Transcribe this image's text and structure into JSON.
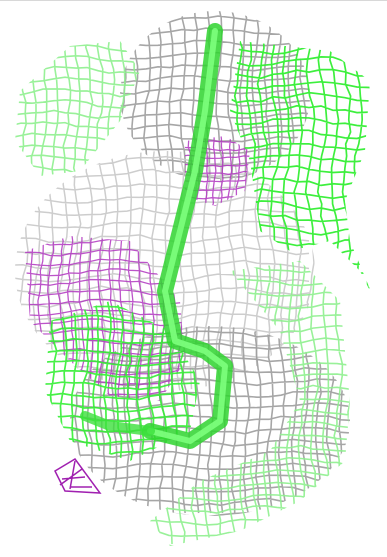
{
  "viewer": {
    "background": "#ffffff",
    "colors": {
      "grey_mesh": "#9c9c9c",
      "grey_mesh_light": "#c8c8c8",
      "green_mesh": "#33ee33",
      "green_mesh_light": "#8ef08e",
      "magenta_mesh": "#b036c0",
      "tube_green": "#44ee44"
    },
    "meshes": [
      {
        "name": "grey-electron-density-mesh",
        "color": "#9c9c9c"
      },
      {
        "name": "green-electron-density-mesh",
        "color": "#33ee33"
      },
      {
        "name": "magenta-electron-density-mesh",
        "color": "#b036c0"
      },
      {
        "name": "green-backbone-tube",
        "color": "#44ee44"
      }
    ]
  }
}
